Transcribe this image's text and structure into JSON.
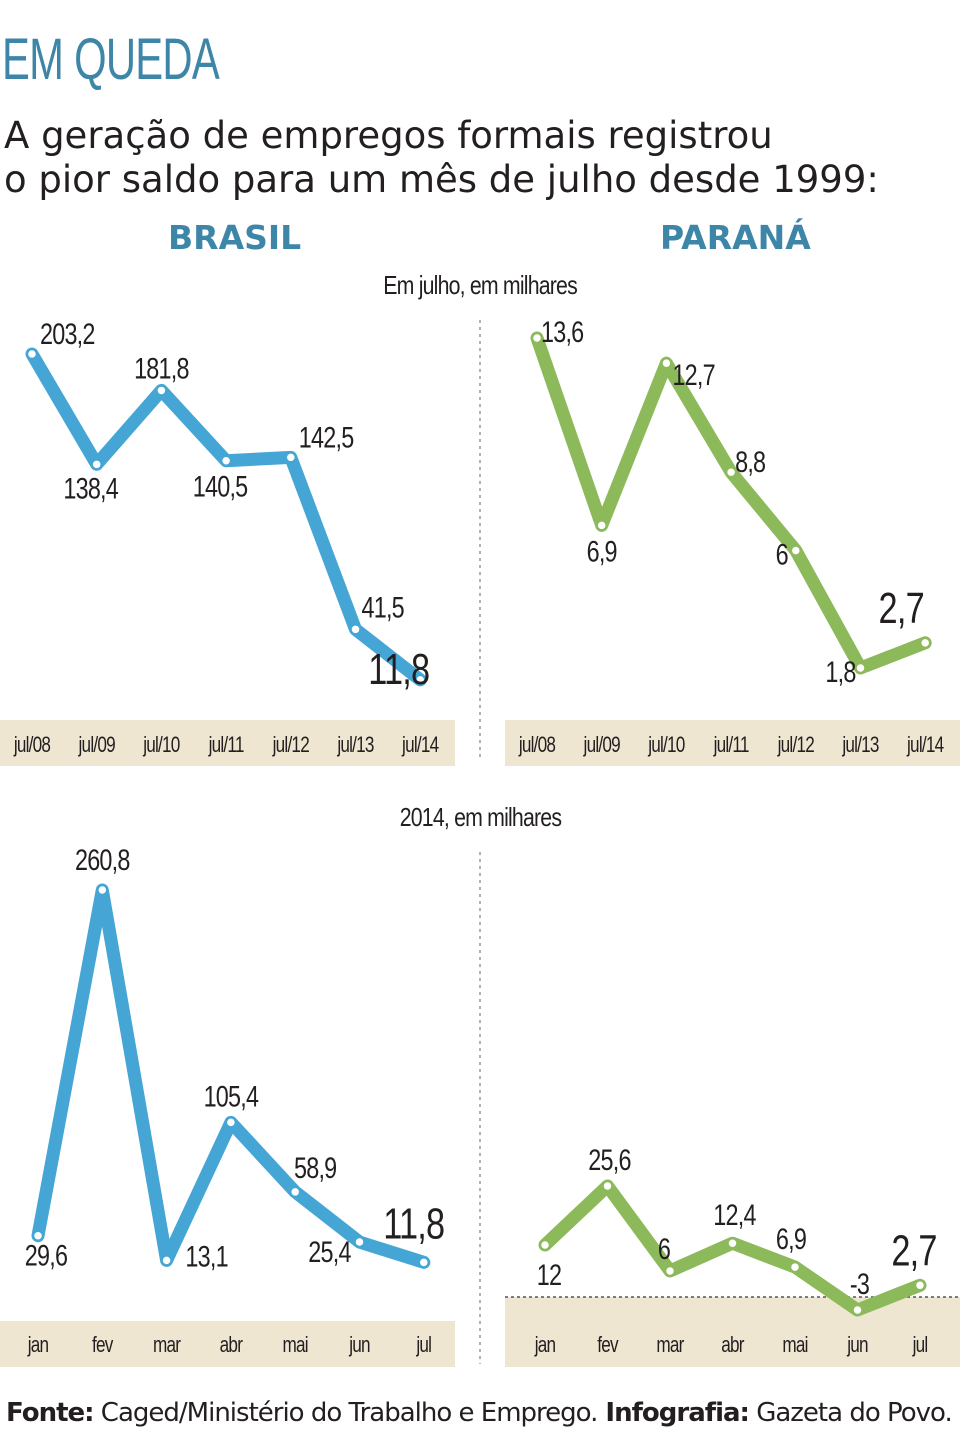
{
  "headline": "EM QUEDA",
  "subtitle_line1": "A geração de empregos formais registrou",
  "subtitle_line2": "o pior saldo para um mês de julho desde 1999:",
  "regions": {
    "left": "BRASIL",
    "right": "PARANÁ"
  },
  "section_top_label": "Em julho, em milhares",
  "section_bottom_label": "2014, em milhares",
  "footer": {
    "source_label": "Fonte:",
    "source_text": " Caged/Ministério do Trabalho e Emprego.",
    "credit_label": " Infografia:",
    "credit_text": " Gazeta do Povo."
  },
  "colors": {
    "brasil_line": "#45a6d6",
    "parana_line": "#8cba5a",
    "axis_band": "#efe6d2",
    "headline": "#3e86a8"
  },
  "chart_data": [
    {
      "type": "line",
      "panel": "brasil-julho",
      "categories": [
        "jul/08",
        "jul/09",
        "jul/10",
        "jul/11",
        "jul/12",
        "jul/13",
        "jul/14"
      ],
      "values": [
        203.2,
        138.4,
        181.8,
        140.5,
        142.5,
        41.5,
        11.8
      ],
      "labels": [
        "203,2",
        "138,4",
        "181,8",
        "140,5",
        "142,5",
        "41,5",
        "11,8"
      ],
      "ylim": [
        0,
        203.2
      ]
    },
    {
      "type": "line",
      "panel": "parana-julho",
      "categories": [
        "jul/08",
        "jul/09",
        "jul/10",
        "jul/11",
        "jul/12",
        "jul/13",
        "jul/14"
      ],
      "values": [
        13.6,
        6.9,
        12.7,
        8.8,
        6,
        1.8,
        2.7
      ],
      "labels": [
        "13,6",
        "6,9",
        "12,7",
        "8,8",
        "6",
        "1,8",
        "2,7"
      ],
      "ylim": [
        1.8,
        13.6
      ]
    },
    {
      "type": "line",
      "panel": "brasil-2014",
      "categories": [
        "jan",
        "fev",
        "mar",
        "abr",
        "mai",
        "jun",
        "jul"
      ],
      "values": [
        29.6,
        260.8,
        13.1,
        105.4,
        58.9,
        25.4,
        11.8
      ],
      "labels": [
        "29,6",
        "260,8",
        "13,1",
        "105,4",
        "58,9",
        "25,4",
        "11,8"
      ],
      "ylim": [
        0,
        260.8
      ]
    },
    {
      "type": "line",
      "panel": "parana-2014",
      "categories": [
        "jan",
        "fev",
        "mar",
        "abr",
        "mai",
        "jun",
        "jul"
      ],
      "values": [
        12,
        25.6,
        6,
        12.4,
        6.9,
        -3,
        2.7
      ],
      "labels": [
        "12",
        "25,6",
        "6",
        "12,4",
        "6,9",
        "-3",
        "2,7"
      ],
      "ylim": [
        -3,
        260.8
      ]
    }
  ]
}
